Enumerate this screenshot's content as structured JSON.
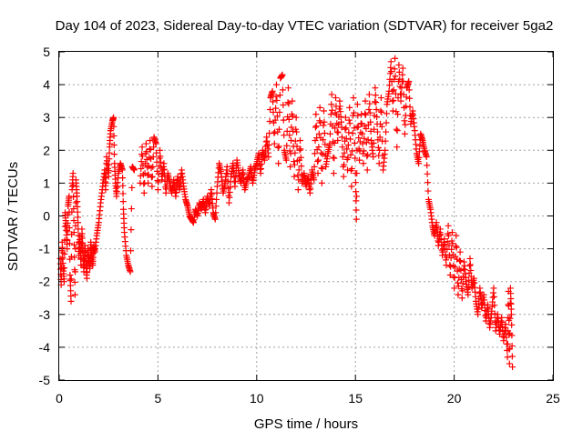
{
  "chart_data": {
    "type": "scatter",
    "title": "Day 104 of 2023, Sidereal Day-to-day VTEC variation (SDTVAR) for receiver 5ga2",
    "xlabel": "GPS time / hours",
    "ylabel": "SDTVAR / TECUs",
    "xlim": [
      0,
      25
    ],
    "ylim": [
      -5,
      5
    ],
    "xticks": [
      0,
      5,
      10,
      15,
      20,
      25
    ],
    "yticks": [
      -5,
      -4,
      -3,
      -2,
      -1,
      0,
      1,
      2,
      3,
      4,
      5
    ],
    "grid": true,
    "marker": "+",
    "series": [
      {
        "name": "SDTVAR",
        "color": "#ff0000",
        "points": [
          [
            0.05,
            -1.3
          ],
          [
            0.1,
            -2.1
          ],
          [
            0.15,
            -0.8
          ],
          [
            0.2,
            -1.6
          ],
          [
            0.25,
            -2.0
          ],
          [
            0.3,
            0.1
          ],
          [
            0.35,
            -0.3
          ],
          [
            0.4,
            -1.0
          ],
          [
            0.45,
            0.3
          ],
          [
            0.5,
            0.6
          ],
          [
            0.55,
            -1.8
          ],
          [
            0.6,
            -2.6
          ],
          [
            0.65,
            0.8
          ],
          [
            0.7,
            1.3
          ],
          [
            0.75,
            -0.5
          ],
          [
            0.8,
            -2.4
          ],
          [
            0.85,
            1.1
          ],
          [
            0.9,
            0.6
          ],
          [
            0.95,
            -0.2
          ],
          [
            1.0,
            -1.2
          ],
          [
            1.05,
            -0.6
          ],
          [
            1.1,
            -1.5
          ],
          [
            1.15,
            -0.4
          ],
          [
            1.2,
            -1.1
          ],
          [
            1.25,
            -1.7
          ],
          [
            1.3,
            -0.9
          ],
          [
            1.35,
            -1.4
          ],
          [
            1.4,
            -1.9
          ],
          [
            1.45,
            -1.0
          ],
          [
            1.5,
            -1.3
          ],
          [
            1.55,
            -1.6
          ],
          [
            1.6,
            -0.8
          ],
          [
            1.65,
            -1.2
          ],
          [
            1.7,
            -1.5
          ],
          [
            1.75,
            -0.9
          ],
          [
            1.8,
            -1.1
          ],
          [
            1.9,
            -0.6
          ],
          [
            2.0,
            -0.2
          ],
          [
            2.1,
            0.4
          ],
          [
            2.2,
            0.9
          ],
          [
            2.3,
            1.4
          ],
          [
            2.35,
            0.8
          ],
          [
            2.4,
            1.8
          ],
          [
            2.5,
            1.2
          ],
          [
            2.55,
            2.1
          ],
          [
            2.6,
            2.6
          ],
          [
            2.7,
            2.9
          ],
          [
            2.75,
            3.0
          ],
          [
            2.8,
            1.6
          ],
          [
            2.85,
            1.0
          ],
          [
            2.9,
            0.6
          ],
          [
            3.0,
            1.3
          ],
          [
            3.1,
            1.6
          ],
          [
            3.2,
            1.4
          ],
          [
            3.25,
            0.2
          ],
          [
            3.3,
            -0.5
          ],
          [
            3.4,
            -1.2
          ],
          [
            3.5,
            -1.5
          ],
          [
            3.6,
            -1.7
          ],
          [
            3.7,
            1.5
          ],
          [
            3.8,
            1.4
          ],
          [
            4.1,
            1.0
          ],
          [
            4.2,
            2.1
          ],
          [
            4.3,
            0.7
          ],
          [
            4.4,
            2.2
          ],
          [
            4.5,
            1.0
          ],
          [
            4.6,
            2.3
          ],
          [
            4.7,
            0.9
          ],
          [
            4.8,
            2.4
          ],
          [
            4.9,
            2.2
          ],
          [
            5.0,
            0.8
          ],
          [
            5.1,
            2.0
          ],
          [
            5.2,
            1.1
          ],
          [
            5.3,
            1.6
          ],
          [
            5.4,
            0.7
          ],
          [
            5.5,
            1.3
          ],
          [
            5.6,
            1.0
          ],
          [
            5.7,
            0.7
          ],
          [
            5.8,
            1.1
          ],
          [
            5.9,
            0.6
          ],
          [
            6.0,
            1.2
          ],
          [
            6.1,
            0.8
          ],
          [
            6.2,
            1.4
          ],
          [
            6.3,
            0.9
          ],
          [
            6.4,
            0.5
          ],
          [
            6.5,
            0.3
          ],
          [
            6.6,
            0.0
          ],
          [
            6.7,
            -0.1
          ],
          [
            6.8,
            -0.2
          ],
          [
            6.9,
            0.2
          ],
          [
            7.0,
            0.0
          ],
          [
            7.1,
            0.4
          ],
          [
            7.2,
            0.2
          ],
          [
            7.3,
            0.5
          ],
          [
            7.4,
            0.1
          ],
          [
            7.5,
            0.6
          ],
          [
            7.6,
            0.3
          ],
          [
            7.7,
            0.8
          ],
          [
            7.8,
            0.1
          ],
          [
            7.9,
            -0.1
          ],
          [
            8.0,
            0.9
          ],
          [
            8.1,
            1.6
          ],
          [
            8.2,
            1.3
          ],
          [
            8.3,
            0.7
          ],
          [
            8.4,
            1.0
          ],
          [
            8.5,
            1.5
          ],
          [
            8.6,
            0.4
          ],
          [
            8.7,
            1.2
          ],
          [
            8.8,
            1.6
          ],
          [
            8.9,
            0.9
          ],
          [
            9.0,
            1.7
          ],
          [
            9.1,
            1.3
          ],
          [
            9.2,
            1.0
          ],
          [
            9.3,
            1.4
          ],
          [
            9.4,
            0.8
          ],
          [
            9.5,
            1.1
          ],
          [
            9.6,
            1.2
          ],
          [
            9.7,
            1.5
          ],
          [
            9.8,
            1.0
          ],
          [
            9.9,
            1.4
          ],
          [
            10.0,
            1.6
          ],
          [
            10.1,
            1.9
          ],
          [
            10.2,
            1.3
          ],
          [
            10.3,
            2.0
          ],
          [
            10.4,
            1.7
          ],
          [
            10.5,
            2.4
          ],
          [
            10.6,
            1.8
          ],
          [
            10.7,
            3.6
          ],
          [
            10.8,
            3.8
          ],
          [
            10.9,
            2.2
          ],
          [
            11.0,
            4.0
          ],
          [
            11.1,
            1.6
          ],
          [
            11.2,
            4.2
          ],
          [
            11.3,
            4.3
          ],
          [
            11.4,
            2.0
          ],
          [
            11.5,
            1.7
          ],
          [
            11.6,
            3.9
          ],
          [
            11.7,
            1.5
          ],
          [
            11.8,
            3.5
          ],
          [
            11.9,
            1.2
          ],
          [
            12.0,
            3.0
          ],
          [
            12.1,
            0.8
          ],
          [
            12.2,
            2.3
          ],
          [
            12.3,
            1.0
          ],
          [
            12.4,
            1.3
          ],
          [
            12.5,
            0.9
          ],
          [
            12.6,
            1.2
          ],
          [
            12.7,
            0.7
          ],
          [
            12.8,
            1.4
          ],
          [
            12.9,
            1.1
          ],
          [
            13.0,
            3.1
          ],
          [
            13.1,
            1.3
          ],
          [
            13.2,
            3.3
          ],
          [
            13.3,
            1.0
          ],
          [
            13.4,
            3.2
          ],
          [
            13.5,
            1.5
          ],
          [
            13.6,
            1.9
          ],
          [
            13.7,
            2.2
          ],
          [
            13.8,
            3.7
          ],
          [
            13.9,
            1.3
          ],
          [
            14.0,
            3.6
          ],
          [
            14.1,
            2.3
          ],
          [
            14.2,
            3.5
          ],
          [
            14.3,
            2.7
          ],
          [
            14.4,
            1.2
          ],
          [
            14.5,
            3.0
          ],
          [
            14.6,
            1.4
          ],
          [
            14.7,
            3.3
          ],
          [
            14.8,
            0.9
          ],
          [
            14.9,
            3.6
          ],
          [
            15.0,
            1.3
          ],
          [
            15.05,
            -0.1
          ],
          [
            15.1,
            3.4
          ],
          [
            15.2,
            1.7
          ],
          [
            15.3,
            3.1
          ],
          [
            15.4,
            1.6
          ],
          [
            15.5,
            3.5
          ],
          [
            15.6,
            1.4
          ],
          [
            15.7,
            3.7
          ],
          [
            15.8,
            2.3
          ],
          [
            15.9,
            1.8
          ],
          [
            16.0,
            3.9
          ],
          [
            16.1,
            2.8
          ],
          [
            16.2,
            1.6
          ],
          [
            16.3,
            3.6
          ],
          [
            16.4,
            1.4
          ],
          [
            16.5,
            2.0
          ],
          [
            16.6,
            3.4
          ],
          [
            16.7,
            3.8
          ],
          [
            16.8,
            4.7
          ],
          [
            16.9,
            3.2
          ],
          [
            17.0,
            4.8
          ],
          [
            17.1,
            2.1
          ],
          [
            17.2,
            4.6
          ],
          [
            17.3,
            3.5
          ],
          [
            17.4,
            4.5
          ],
          [
            17.5,
            2.5
          ],
          [
            17.6,
            3.9
          ],
          [
            17.7,
            4.1
          ],
          [
            17.8,
            2.8
          ],
          [
            17.9,
            3.2
          ],
          [
            18.0,
            2.6
          ],
          [
            18.1,
            1.9
          ],
          [
            18.2,
            1.6
          ],
          [
            18.3,
            2.5
          ],
          [
            18.4,
            2.3
          ],
          [
            18.5,
            2.0
          ],
          [
            18.6,
            1.8
          ],
          [
            18.7,
            0.5
          ],
          [
            18.8,
            0.2
          ],
          [
            18.9,
            -0.3
          ],
          [
            19.0,
            -0.6
          ],
          [
            19.1,
            -0.2
          ],
          [
            19.2,
            -0.9
          ],
          [
            19.3,
            -0.4
          ],
          [
            19.4,
            -1.2
          ],
          [
            19.5,
            -0.7
          ],
          [
            19.6,
            -1.5
          ],
          [
            19.7,
            -0.3
          ],
          [
            19.8,
            -1.8
          ],
          [
            19.9,
            -0.5
          ],
          [
            20.0,
            -2.2
          ],
          [
            20.1,
            -0.6
          ],
          [
            20.2,
            -2.4
          ],
          [
            20.3,
            -1.1
          ],
          [
            20.4,
            -2.5
          ],
          [
            20.5,
            -1.4
          ],
          [
            20.6,
            -2.0
          ],
          [
            20.7,
            -2.4
          ],
          [
            20.8,
            -1.3
          ],
          [
            20.9,
            -2.2
          ],
          [
            21.0,
            -1.9
          ],
          [
            21.1,
            -2.6
          ],
          [
            21.2,
            -3.0
          ],
          [
            21.3,
            -2.2
          ],
          [
            21.4,
            -2.8
          ],
          [
            21.5,
            -2.4
          ],
          [
            21.6,
            -3.2
          ],
          [
            21.7,
            -2.7
          ],
          [
            21.8,
            -3.4
          ],
          [
            21.9,
            -2.9
          ],
          [
            22.0,
            -2.2
          ],
          [
            22.1,
            -3.5
          ],
          [
            22.2,
            -3.0
          ],
          [
            22.3,
            -3.6
          ],
          [
            22.4,
            -3.1
          ],
          [
            22.5,
            -3.8
          ],
          [
            22.6,
            -3.3
          ],
          [
            22.7,
            -4.3
          ],
          [
            22.75,
            -2.3
          ],
          [
            22.8,
            -4.5
          ],
          [
            22.85,
            -2.2
          ],
          [
            22.9,
            -3.0
          ],
          [
            22.95,
            -4.6
          ]
        ]
      }
    ]
  }
}
